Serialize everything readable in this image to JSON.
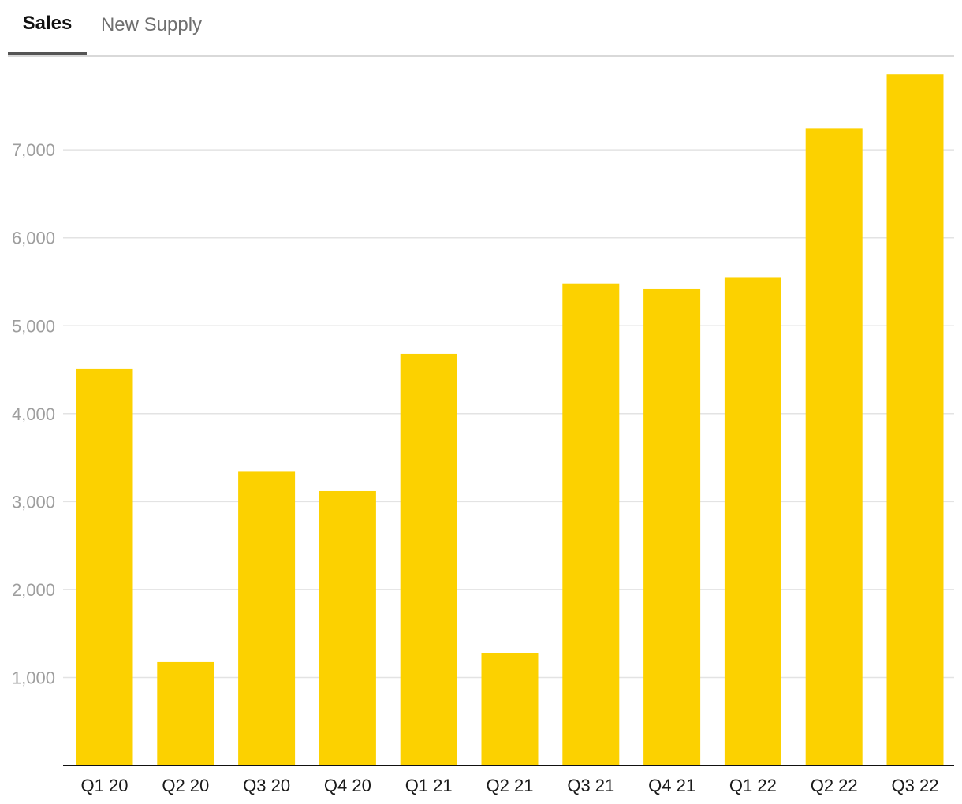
{
  "tabs": [
    {
      "label": "Sales",
      "active": true
    },
    {
      "label": "New Supply",
      "active": false
    }
  ],
  "colors": {
    "bar": "#FCD100",
    "grid": "#e3e3e3",
    "axis": "#111111",
    "ytick": "#9e9e9e",
    "xtick": "#1a1a1a"
  },
  "chart_data": {
    "type": "bar",
    "categories": [
      "Q1 20",
      "Q2 20",
      "Q3 20",
      "Q4 20",
      "Q1 21",
      "Q2 21",
      "Q3 21",
      "Q4 21",
      "Q1 22",
      "Q2 22",
      "Q3 22"
    ],
    "series": [
      {
        "values": [
          4510,
          1175,
          3340,
          3120,
          4680,
          1275,
          5480,
          5415,
          5545,
          7240,
          7860
        ]
      }
    ],
    "yticks": [
      1000,
      2000,
      3000,
      4000,
      5000,
      6000,
      7000
    ],
    "ytick_labels": [
      "1,000",
      "2,000",
      "3,000",
      "4,000",
      "5,000",
      "6,000",
      "7,000"
    ],
    "ylim": [
      0,
      8000
    ],
    "grid": true,
    "title": "",
    "xlabel": "",
    "ylabel": ""
  }
}
